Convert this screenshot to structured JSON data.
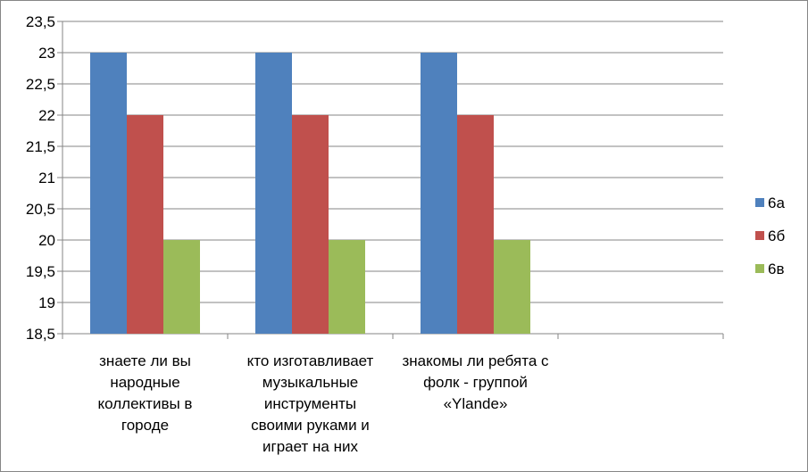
{
  "chart_data": {
    "type": "bar",
    "categories": [
      [
        "знаете ли вы",
        "народные",
        "коллективы в",
        "городе"
      ],
      [
        "кто изготавливает",
        "музыкальные",
        "инструменты",
        "своими руками и",
        "играет на них"
      ],
      [
        "знакомы ли ребята с",
        "фолк - группой",
        "«Ylande»"
      ],
      [
        ""
      ]
    ],
    "series": [
      {
        "name": "6а",
        "color": "#4F81BD",
        "values": [
          23,
          23,
          23,
          null
        ]
      },
      {
        "name": "6б",
        "color": "#C0504D",
        "values": [
          22,
          22,
          22,
          null
        ]
      },
      {
        "name": "6в",
        "color": "#9BBB59",
        "values": [
          20,
          20,
          20,
          null
        ]
      }
    ],
    "ylim": [
      18.5,
      23.5
    ],
    "yticks": [
      "18,5",
      "19",
      "19,5",
      "20",
      "20,5",
      "21",
      "21,5",
      "22",
      "22,5",
      "23",
      "23,5"
    ],
    "grid": true,
    "legend": "right",
    "title": "",
    "xlabel": "",
    "ylabel": ""
  }
}
